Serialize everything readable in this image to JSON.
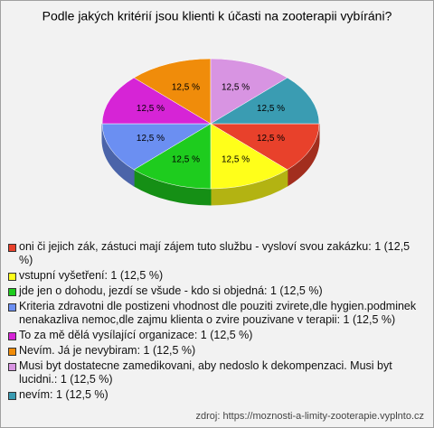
{
  "chart_data": {
    "type": "pie3d",
    "title": "Podle jakých kritérií jsou klienti k účasti na zooterapii vybíráni?",
    "categories": [
      "oni či jejich zák, zástuci mají zájem tuto službu - vysloví svou zakázku: 1 (12,5 %)",
      "vstupní vyšetření: 1 (12,5 %)",
      "jde jen o dohodu, jezdí se všude - kdo si objedná: 1 (12,5 %)",
      "Kriteria zdravotni dle postizeni vhodnost dle pouziti zvirete,dle hygien.podminek nenakazliva nemoc,dle zajmu klienta o zvire pouzivane v terapii: 1 (12,5 %)",
      "To za mě dělá vysílající organizace: 1 (12,5 %)",
      "Nevím. Já je nevybiram: 1 (12,5 %)",
      "Musi byt dostatecne zamedikovani, aby nedoslo k dekompenzaci. Musi byt lucidni.: 1 (12,5 %)",
      "nevím: 1 (12,5 %)"
    ],
    "values": [
      12.5,
      12.5,
      12.5,
      12.5,
      12.5,
      12.5,
      12.5,
      12.5
    ],
    "value_labels": [
      "12,5 %",
      "12,5 %",
      "12,5 %",
      "12,5 %",
      "12,5 %",
      "12,5 %",
      "12,5 %",
      "12,5 %"
    ],
    "colors": [
      "#e8412b",
      "#ffff1a",
      "#1ecc1e",
      "#6b8ff2",
      "#d624d6",
      "#f08c0a",
      "#d894e2",
      "#3a9cb2"
    ],
    "source": "zdroj: https://moznosti-a-limity-zooterapie.vyplnto.cz"
  }
}
